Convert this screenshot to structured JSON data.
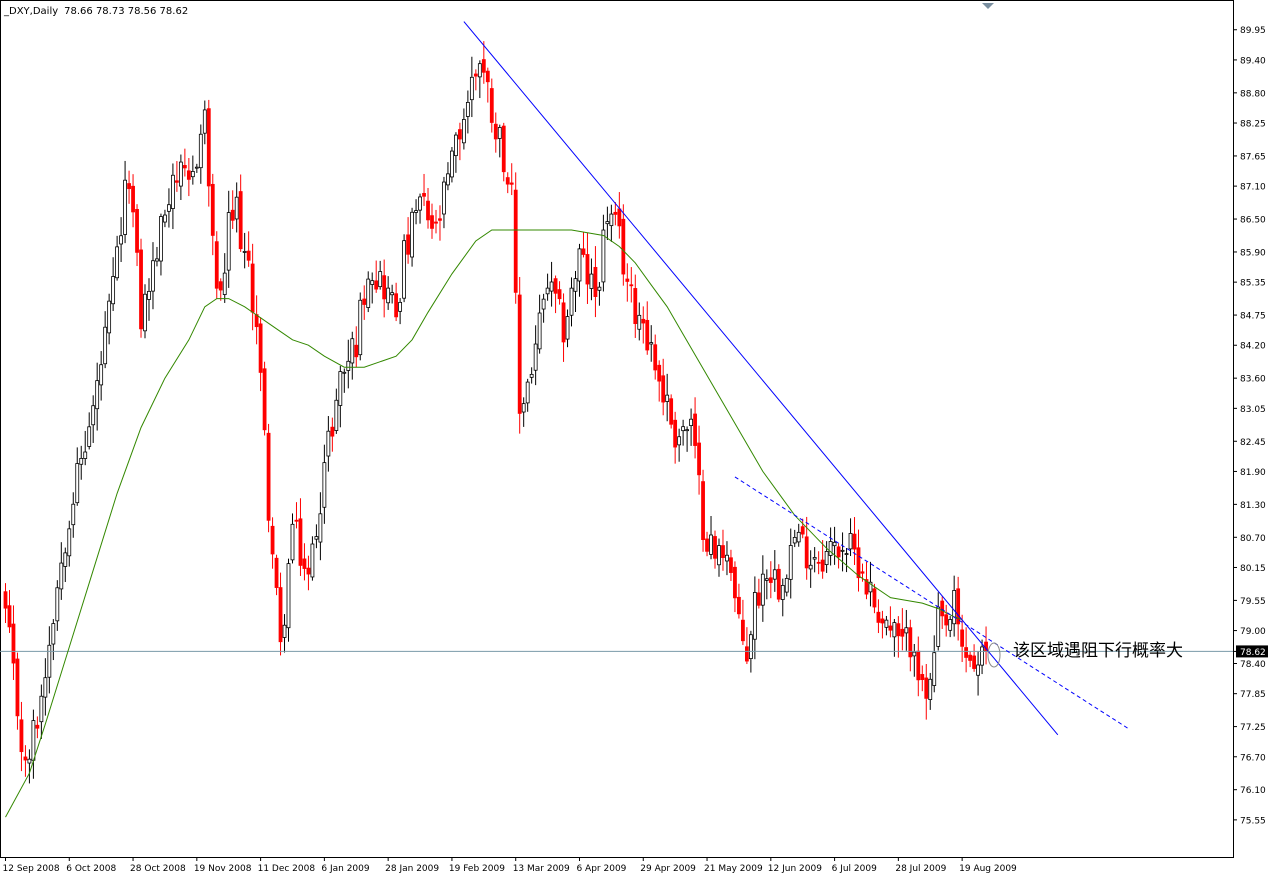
{
  "header": {
    "symbol": "_DXY,Daily",
    "ohlc": "78.66 78.73 78.56 78.62"
  },
  "annotation": {
    "text": "该区域遇阻下行概率大"
  },
  "chart_data": {
    "type": "candlestick",
    "symbol": "_DXY",
    "timeframe": "Daily",
    "ylim": [
      75.55,
      90.2
    ],
    "yticks": [
      "89.95",
      "89.40",
      "88.80",
      "88.25",
      "87.65",
      "87.10",
      "86.50",
      "85.90",
      "85.35",
      "84.75",
      "84.20",
      "83.60",
      "83.05",
      "82.45",
      "81.90",
      "81.30",
      "80.70",
      "80.15",
      "79.55",
      "79.00",
      "78.62",
      "78.40",
      "77.85",
      "77.25",
      "76.70",
      "76.10",
      "75.55"
    ],
    "current_price": "78.62",
    "xticks": [
      {
        "label": "12 Sep 2008",
        "bar": 0
      },
      {
        "label": "6 Oct 2008",
        "bar": 16
      },
      {
        "label": "28 Oct 2008",
        "bar": 32
      },
      {
        "label": "19 Nov 2008",
        "bar": 48
      },
      {
        "label": "11 Dec 2008",
        "bar": 64
      },
      {
        "label": "6 Jan 2009",
        "bar": 80
      },
      {
        "label": "28 Jan 2009",
        "bar": 96
      },
      {
        "label": "19 Feb 2009",
        "bar": 112
      },
      {
        "label": "13 Mar 2009",
        "bar": 128
      },
      {
        "label": "6 Apr 2009",
        "bar": 144
      },
      {
        "label": "29 Apr 2009",
        "bar": 160
      },
      {
        "label": "21 May 2009",
        "bar": 176
      },
      {
        "label": "12 Jun 2009",
        "bar": 192
      },
      {
        "label": "6 Jul 2009",
        "bar": 208
      },
      {
        "label": "28 Jul 2009",
        "bar": 224
      },
      {
        "label": "19 Aug 2009",
        "bar": 240
      }
    ],
    "close_path": [
      [
        0,
        79.3
      ],
      [
        5,
        76.4
      ],
      [
        9,
        77.8
      ],
      [
        12,
        79.4
      ],
      [
        16,
        81.2
      ],
      [
        22,
        83.0
      ],
      [
        26,
        84.7
      ],
      [
        31,
        87.4
      ],
      [
        34,
        84.7
      ],
      [
        38,
        85.9
      ],
      [
        42,
        87.4
      ],
      [
        46,
        87.0
      ],
      [
        50,
        88.4
      ],
      [
        52,
        85.9
      ],
      [
        54,
        84.9
      ],
      [
        56,
        86.3
      ],
      [
        58,
        86.7
      ],
      [
        60,
        85.8
      ],
      [
        63,
        84.7
      ],
      [
        66,
        81.3
      ],
      [
        69,
        78.6
      ],
      [
        72,
        80.9
      ],
      [
        76,
        79.9
      ],
      [
        80,
        82.0
      ],
      [
        84,
        83.6
      ],
      [
        88,
        84.3
      ],
      [
        91,
        85.7
      ],
      [
        95,
        85.3
      ],
      [
        98,
        84.8
      ],
      [
        100,
        85.8
      ],
      [
        104,
        86.8
      ],
      [
        108,
        86.2
      ],
      [
        112,
        87.5
      ],
      [
        116,
        88.7
      ],
      [
        119,
        89.5
      ],
      [
        122,
        88.5
      ],
      [
        125,
        87.7
      ],
      [
        127,
        86.8
      ],
      [
        129,
        83.0
      ],
      [
        132,
        83.8
      ],
      [
        136,
        85.3
      ],
      [
        140,
        84.5
      ],
      [
        144,
        85.8
      ],
      [
        148,
        85.1
      ],
      [
        151,
        86.6
      ],
      [
        154,
        86.1
      ],
      [
        157,
        85.0
      ],
      [
        160,
        84.7
      ],
      [
        164,
        83.6
      ],
      [
        168,
        82.6
      ],
      [
        172,
        82.7
      ],
      [
        175,
        81.0
      ],
      [
        178,
        80.3
      ],
      [
        181,
        80.6
      ],
      [
        184,
        79.0
      ],
      [
        186,
        78.6
      ],
      [
        188,
        79.5
      ],
      [
        191,
        80.2
      ],
      [
        194,
        79.9
      ],
      [
        198,
        80.7
      ],
      [
        202,
        80.4
      ],
      [
        206,
        80.4
      ],
      [
        210,
        80.6
      ],
      [
        214,
        80.3
      ],
      [
        218,
        79.5
      ],
      [
        222,
        79.0
      ],
      [
        225,
        78.7
      ],
      [
        228,
        78.9
      ],
      [
        230,
        77.8
      ],
      [
        232,
        77.9
      ],
      [
        234,
        79.1
      ],
      [
        236,
        79.0
      ],
      [
        238,
        79.4
      ],
      [
        240,
        78.6
      ],
      [
        242,
        78.5
      ],
      [
        244,
        78.3
      ],
      [
        246,
        78.62
      ]
    ],
    "ma_path": [
      [
        0,
        75.6
      ],
      [
        6,
        76.4
      ],
      [
        10,
        77.3
      ],
      [
        16,
        78.7
      ],
      [
        22,
        80.1
      ],
      [
        28,
        81.5
      ],
      [
        34,
        82.7
      ],
      [
        40,
        83.6
      ],
      [
        46,
        84.3
      ],
      [
        50,
        84.9
      ],
      [
        53,
        85.05
      ],
      [
        56,
        85.05
      ],
      [
        60,
        84.9
      ],
      [
        64,
        84.7
      ],
      [
        68,
        84.5
      ],
      [
        72,
        84.3
      ],
      [
        76,
        84.2
      ],
      [
        80,
        84.0
      ],
      [
        85,
        83.8
      ],
      [
        90,
        83.8
      ],
      [
        94,
        83.9
      ],
      [
        98,
        84.0
      ],
      [
        102,
        84.3
      ],
      [
        106,
        84.8
      ],
      [
        112,
        85.5
      ],
      [
        118,
        86.1
      ],
      [
        122,
        86.3
      ],
      [
        126,
        86.3
      ],
      [
        130,
        86.3
      ],
      [
        134,
        86.3
      ],
      [
        138,
        86.3
      ],
      [
        142,
        86.3
      ],
      [
        146,
        86.25
      ],
      [
        150,
        86.2
      ],
      [
        154,
        86.0
      ],
      [
        158,
        85.7
      ],
      [
        162,
        85.3
      ],
      [
        166,
        84.9
      ],
      [
        170,
        84.4
      ],
      [
        174,
        83.9
      ],
      [
        178,
        83.4
      ],
      [
        182,
        82.9
      ],
      [
        186,
        82.4
      ],
      [
        190,
        81.9
      ],
      [
        194,
        81.5
      ],
      [
        198,
        81.1
      ],
      [
        202,
        80.8
      ],
      [
        206,
        80.5
      ],
      [
        210,
        80.25
      ],
      [
        214,
        80.0
      ],
      [
        218,
        79.8
      ],
      [
        222,
        79.6
      ],
      [
        226,
        79.55
      ],
      [
        230,
        79.5
      ],
      [
        234,
        79.4
      ],
      [
        238,
        79.25
      ],
      [
        240,
        79.2
      ]
    ],
    "trendlines": [
      {
        "style": "solid",
        "color": "#0000ff",
        "from": [
          115,
          90.1
        ],
        "to": [
          264,
          77.1
        ]
      },
      {
        "style": "dashed",
        "color": "#0000ff",
        "from": [
          183,
          81.8
        ],
        "to": [
          282,
          77.2
        ]
      }
    ],
    "series": [
      {
        "name": "_DXY",
        "color_up": "#000000",
        "color_down": "#ff0000"
      },
      {
        "name": "MA",
        "color": "#338800"
      }
    ],
    "horizontal_line_color": "#7a9aa8",
    "highlight_ellipse": {
      "bar": 246,
      "price": 79.0
    }
  }
}
